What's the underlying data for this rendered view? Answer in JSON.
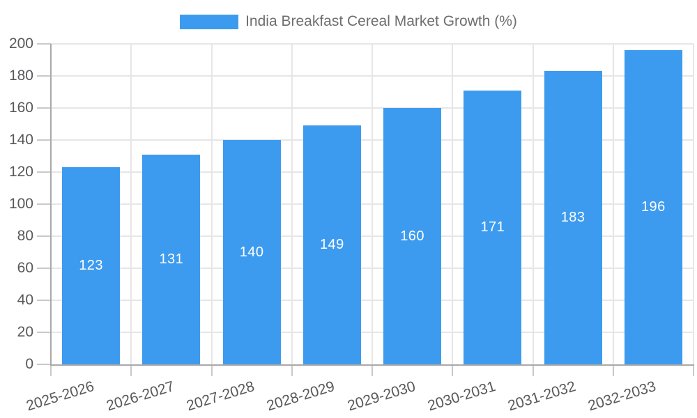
{
  "legend": {
    "swatch_color": "#3d9bef",
    "label": "India Breakfast Cereal Market Growth (%)"
  },
  "chart_data": {
    "type": "bar",
    "title": "India Breakfast Cereal Market Growth (%)",
    "categories": [
      "2025-2026",
      "2026-2027",
      "2027-2028",
      "2028-2029",
      "2029-2030",
      "2030-2031",
      "2031-2032",
      "2032-2033"
    ],
    "values": [
      123,
      131,
      140,
      149,
      160,
      171,
      183,
      196
    ],
    "bar_labels": [
      "123",
      "131",
      "140",
      "149",
      "160",
      "171",
      "183",
      "196"
    ],
    "xlabel": "",
    "ylabel": "",
    "ylim": [
      0,
      200
    ],
    "ytick_step": 20,
    "ytick_labels": [
      "0",
      "20",
      "40",
      "60",
      "80",
      "100",
      "120",
      "140",
      "160",
      "180",
      "200"
    ],
    "grid": true,
    "legend_position": "top-center",
    "colors": {
      "bar": "#3d9bef",
      "bar_value_text": "#ffffff",
      "grid": "#e6e6e6",
      "axis": "#a9a9a9",
      "tick": "#c9c9c9",
      "axis_text": "#58585b",
      "legend_text": "#6e6e6e"
    }
  }
}
